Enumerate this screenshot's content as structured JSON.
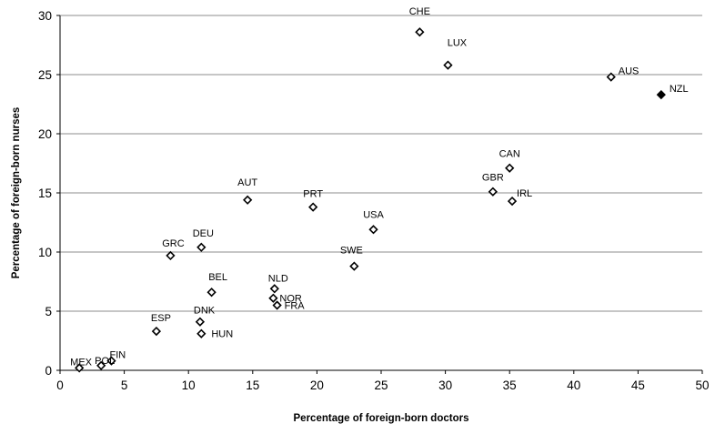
{
  "chart_data": {
    "type": "scatter",
    "title": "",
    "xlabel": "Percentage of foreign-born doctors",
    "ylabel": "Percentage of foreign-born nurses",
    "xlim": [
      0,
      50
    ],
    "ylim": [
      0,
      30
    ],
    "xticks": [
      0,
      5,
      10,
      15,
      20,
      25,
      30,
      35,
      40,
      45,
      50
    ],
    "yticks": [
      0,
      5,
      10,
      15,
      20,
      25,
      30
    ],
    "grid": "horizontal",
    "legend": "none",
    "colors": {
      "marker_fill": "#ffffff",
      "marker_stroke": "#000000",
      "highlight_fill": "#000000",
      "grid": "#8c8c8c"
    },
    "points": [
      {
        "label": "CHE",
        "x": 28.0,
        "y": 28.6,
        "highlight": false
      },
      {
        "label": "LUX",
        "x": 30.2,
        "y": 25.8,
        "highlight": false
      },
      {
        "label": "AUS",
        "x": 42.9,
        "y": 24.8,
        "highlight": false
      },
      {
        "label": "NZL",
        "x": 46.8,
        "y": 23.3,
        "highlight": true
      },
      {
        "label": "CAN",
        "x": 35.0,
        "y": 17.1,
        "highlight": false
      },
      {
        "label": "GBR",
        "x": 33.7,
        "y": 15.1,
        "highlight": false
      },
      {
        "label": "IRL",
        "x": 35.2,
        "y": 14.3,
        "highlight": false
      },
      {
        "label": "AUT",
        "x": 14.6,
        "y": 14.4,
        "highlight": false
      },
      {
        "label": "PRT",
        "x": 19.7,
        "y": 13.8,
        "highlight": false
      },
      {
        "label": "USA",
        "x": 24.4,
        "y": 11.9,
        "highlight": false
      },
      {
        "label": "DEU",
        "x": 11.0,
        "y": 10.4,
        "highlight": false
      },
      {
        "label": "GRC",
        "x": 8.6,
        "y": 9.7,
        "highlight": false
      },
      {
        "label": "SWE",
        "x": 22.9,
        "y": 8.8,
        "highlight": false
      },
      {
        "label": "NLD",
        "x": 16.7,
        "y": 6.9,
        "highlight": false
      },
      {
        "label": "BEL",
        "x": 11.8,
        "y": 6.6,
        "highlight": false
      },
      {
        "label": "NOR",
        "x": 16.6,
        "y": 6.1,
        "highlight": false
      },
      {
        "label": "FRA",
        "x": 16.9,
        "y": 5.5,
        "highlight": false
      },
      {
        "label": "DNK",
        "x": 10.9,
        "y": 4.1,
        "highlight": false
      },
      {
        "label": "ESP",
        "x": 7.5,
        "y": 3.3,
        "highlight": false
      },
      {
        "label": "HUN",
        "x": 11.0,
        "y": 3.1,
        "highlight": false
      },
      {
        "label": "FIN",
        "x": 4.0,
        "y": 0.8,
        "highlight": false
      },
      {
        "label": "POL",
        "x": 3.2,
        "y": 0.4,
        "highlight": false
      },
      {
        "label": "MEX",
        "x": 1.5,
        "y": 0.2,
        "highlight": false
      }
    ]
  }
}
